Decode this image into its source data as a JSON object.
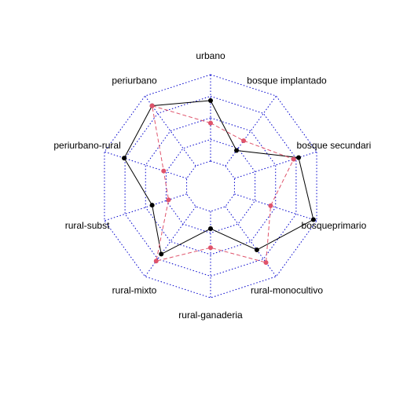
{
  "chart_data": {
    "type": "radar",
    "title": "",
    "axes": [
      "urbano",
      "bosque implantado",
      "bosque secundari",
      "bosqueprimario",
      "rural-monocultivo",
      "rural-ganaderia",
      "rural-mixto",
      "rural-subst",
      "periurbano-rural",
      "periurbano"
    ],
    "rings": [
      0,
      0.25,
      0.5,
      0.75,
      1
    ],
    "grid": true,
    "legend": "none",
    "series": [
      {
        "values": [
          0.7,
          0.22,
          0.78,
          0.96,
          0.62,
          0.2,
          0.68,
          0.42,
          0.76,
          0.86
        ],
        "color": "#000000",
        "line": "solid"
      },
      {
        "values": [
          0.44,
          0.36,
          0.72,
          0.44,
          0.8,
          0.42,
          0.78,
          0.22,
          0.28,
          0.86
        ],
        "color": "#DF536B",
        "line": "dashed"
      }
    ],
    "grid_color": "#0000CD"
  }
}
